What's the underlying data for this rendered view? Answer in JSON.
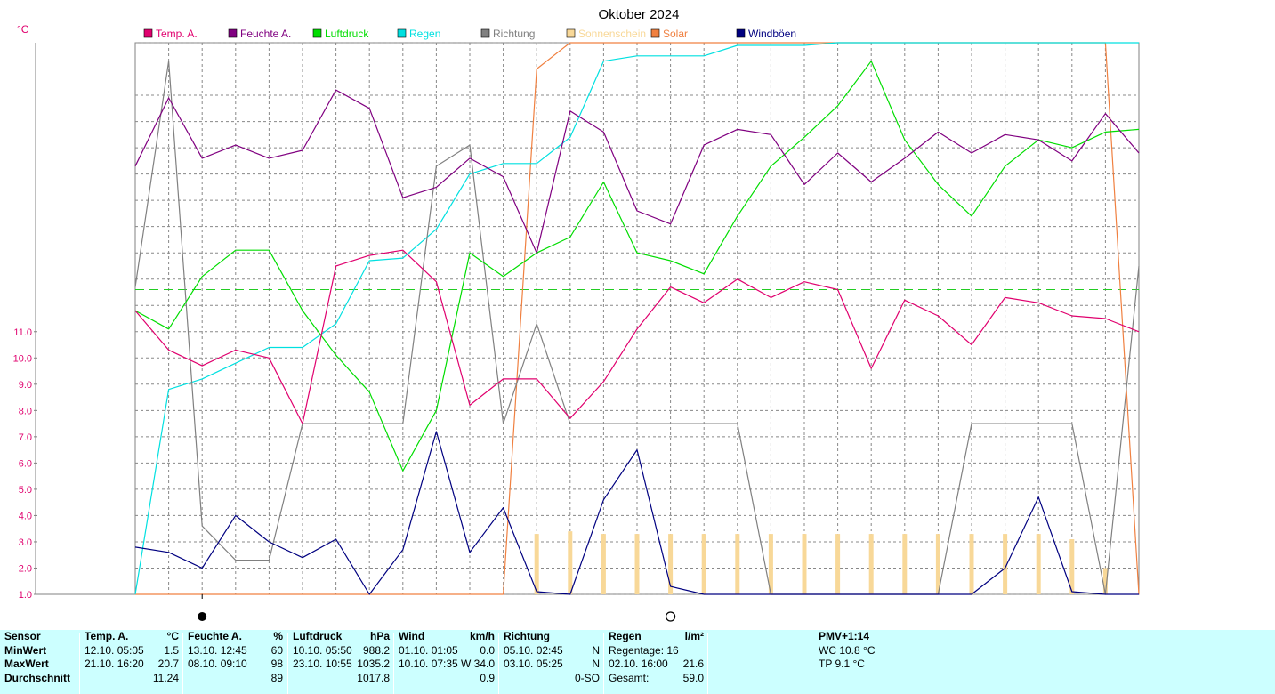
{
  "chart_data": {
    "type": "line",
    "title": "Oktober 2024",
    "y_unit": "°C",
    "ylim": [
      1.0,
      22.0
    ],
    "y_ticks": [
      "1.0",
      "2.0",
      "3.0",
      "4.0",
      "5.0",
      "6.0",
      "7.0",
      "8.0",
      "9.0",
      "10.0",
      "11.0"
    ],
    "x": [
      1,
      2,
      3,
      4,
      5,
      6,
      7,
      8,
      9,
      10,
      11,
      12,
      13,
      14,
      15,
      16,
      17,
      18,
      19,
      20,
      21,
      22,
      23,
      24,
      25,
      26,
      27,
      28,
      29,
      30,
      31
    ],
    "reference_line": 12.6,
    "series": [
      {
        "name": "Temp. A.",
        "color": "#e0006e",
        "values": [
          11.8,
          10.3,
          9.7,
          10.3,
          10.0,
          7.5,
          13.5,
          13.9,
          14.1,
          12.9,
          8.2,
          9.2,
          9.2,
          7.7,
          9.1,
          11.1,
          12.7,
          12.1,
          13.0,
          12.3,
          12.9,
          12.6,
          9.6,
          12.2,
          11.6,
          10.5,
          12.3,
          12.1,
          11.6,
          11.5,
          11.0
        ]
      },
      {
        "name": "Feuchte A.",
        "color": "#800080",
        "values": [
          17.3,
          19.9,
          17.6,
          18.1,
          17.6,
          17.9,
          20.2,
          19.5,
          16.1,
          16.5,
          17.6,
          16.9,
          14.0,
          19.4,
          18.6,
          15.6,
          15.1,
          18.1,
          18.7,
          18.5,
          16.6,
          17.8,
          16.7,
          17.6,
          18.6,
          17.8,
          18.5,
          18.3,
          17.5,
          19.3,
          17.8
        ]
      },
      {
        "name": "Luftdruck",
        "color": "#00dd00",
        "values": [
          11.8,
          11.1,
          13.1,
          14.1,
          14.1,
          11.8,
          10.1,
          8.7,
          5.7,
          8.0,
          14.0,
          13.1,
          14.0,
          14.6,
          16.7,
          14.0,
          13.7,
          13.2,
          15.4,
          17.3,
          18.4,
          19.6,
          21.3,
          18.3,
          16.6,
          15.4,
          17.3,
          18.3,
          18.0,
          18.6,
          18.7
        ]
      },
      {
        "name": "Regen",
        "color": "#00e0e0",
        "values": [
          1.0,
          8.8,
          9.2,
          9.8,
          10.4,
          10.4,
          11.3,
          13.7,
          13.8,
          14.9,
          17.0,
          17.4,
          17.4,
          18.4,
          21.3,
          21.5,
          21.5,
          21.5,
          21.9,
          21.9,
          21.9,
          22.0,
          22.0,
          22.0,
          22.0,
          22.0,
          22.0,
          22.0,
          22.0,
          22.0,
          22.0
        ]
      },
      {
        "name": "Richtung",
        "color": "#808080",
        "values": [
          12.7,
          21.3,
          3.6,
          2.3,
          2.3,
          7.5,
          7.5,
          7.5,
          7.5,
          17.3,
          18.1,
          7.5,
          11.3,
          7.5,
          7.5,
          7.5,
          7.5,
          7.5,
          7.5,
          1.0,
          1.0,
          1.0,
          1.0,
          1.0,
          1.0,
          7.5,
          7.5,
          7.5,
          7.5,
          1.0,
          13.5
        ]
      },
      {
        "name": "Sonnenschein",
        "color": "#f8d898",
        "values": [
          0,
          0,
          0,
          0,
          0,
          0,
          0,
          0,
          0,
          0,
          0,
          0,
          3.3,
          3.4,
          3.3,
          3.3,
          3.3,
          3.3,
          3.3,
          3.3,
          3.3,
          3.3,
          3.3,
          3.3,
          3.3,
          3.3,
          3.3,
          3.3,
          3.1,
          2.0,
          0
        ]
      },
      {
        "name": "Solar",
        "color": "#f08040",
        "values": [
          1.0,
          1.0,
          1.0,
          1.0,
          1.0,
          1.0,
          1.0,
          1.0,
          1.0,
          1.0,
          1.0,
          1.0,
          21.0,
          22.0,
          22.5,
          22.5,
          22.5,
          22.5,
          22.5,
          22.4,
          22.5,
          22.5,
          22.5,
          22.5,
          22.5,
          22.5,
          22.5,
          22.5,
          22.5,
          22.5,
          1.0
        ]
      },
      {
        "name": "Windböen",
        "color": "#000080",
        "values": [
          2.8,
          2.6,
          2.0,
          4.0,
          3.0,
          2.4,
          3.1,
          1.0,
          2.7,
          7.2,
          2.6,
          4.3,
          1.1,
          1.0,
          4.6,
          6.5,
          1.3,
          1.0,
          0.5,
          0.5,
          0.5,
          0.5,
          0.5,
          0.5,
          0.5,
          1.0,
          2.0,
          4.7,
          1.1,
          1.0,
          1.0
        ]
      }
    ],
    "moon_new_day": 3,
    "moon_full_day": 17
  },
  "stats": {
    "sensor": {
      "header": "Sensor",
      "rows": [
        "MinWert",
        "MaxWert",
        "Durchschnitt"
      ]
    },
    "temp": {
      "header": "Temp. A.",
      "unit": "°C",
      "rows": [
        [
          "12.10.  05:05",
          "1.5"
        ],
        [
          "21.10.  16:20",
          "20.7"
        ],
        [
          "",
          "11.24"
        ]
      ]
    },
    "feuchte": {
      "header": "Feuchte A.",
      "unit": "%",
      "rows": [
        [
          "13.10.  12:45",
          "60"
        ],
        [
          "08.10.  09:10",
          "98"
        ],
        [
          "",
          "89"
        ]
      ]
    },
    "luftdruck": {
      "header": "Luftdruck",
      "unit": "hPa",
      "rows": [
        [
          "10.10.  05:50",
          "988.2"
        ],
        [
          "23.10.  10:55",
          "1035.2"
        ],
        [
          "",
          "1017.8"
        ]
      ]
    },
    "wind": {
      "header": "Wind",
      "unit": "km/h",
      "rows": [
        [
          "01.10.  01:05",
          "0.0"
        ],
        [
          "10.10.  07:35",
          "W 34.0"
        ],
        [
          "",
          "0.9"
        ]
      ]
    },
    "richtung": {
      "header": "Richtung",
      "rows": [
        [
          "05.10.  02:45",
          "N"
        ],
        [
          "03.10.  05:25",
          "N"
        ],
        [
          "",
          "0-SO"
        ]
      ]
    },
    "regen": {
      "header": "Regen",
      "unit": "l/m²",
      "rows": [
        [
          "Regentage: 16",
          ""
        ],
        [
          "02.10.  16:00",
          "21.6"
        ],
        [
          "Gesamt:",
          "59.0"
        ]
      ]
    },
    "pmv": {
      "header": "PMV+1:14",
      "rows": [
        "WC 10.8 °C",
        "TP 9.1 °C"
      ]
    }
  }
}
